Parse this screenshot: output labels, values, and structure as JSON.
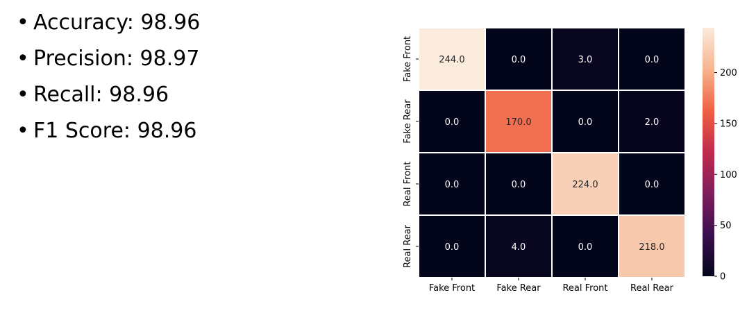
{
  "metrics": [
    {
      "label": "Accuracy",
      "value": "98.96"
    },
    {
      "label": "Precision",
      "value": "98.97"
    },
    {
      "label": "Recall",
      "value": "98.96"
    },
    {
      "label": "F1 Score",
      "value": "98.96"
    }
  ],
  "chart_data": {
    "type": "heatmap",
    "title": "",
    "xlabel": "",
    "ylabel": "",
    "x_categories": [
      "Fake Front",
      "Fake Rear",
      "Real Front",
      "Real Rear"
    ],
    "y_categories": [
      "Fake Front",
      "Fake Rear",
      "Real Front",
      "Real Rear"
    ],
    "values": [
      [
        244.0,
        0.0,
        3.0,
        0.0
      ],
      [
        0.0,
        170.0,
        0.0,
        2.0
      ],
      [
        0.0,
        0.0,
        224.0,
        0.0
      ],
      [
        0.0,
        4.0,
        0.0,
        218.0
      ]
    ],
    "cell_labels": [
      [
        "244.0",
        "0.0",
        "3.0",
        "0.0"
      ],
      [
        "0.0",
        "170.0",
        "0.0",
        "2.0"
      ],
      [
        "0.0",
        "0.0",
        "224.0",
        "0.0"
      ],
      [
        "0.0",
        "4.0",
        "0.0",
        "218.0"
      ]
    ],
    "colorbar": {
      "range": [
        0,
        244
      ],
      "ticks": [
        0,
        50,
        100,
        150,
        200
      ],
      "tick_labels": [
        "0",
        "50",
        "100",
        "150",
        "200"
      ]
    },
    "colormap": [
      "#03051a",
      "#3b0f4f",
      "#7e1d5c",
      "#c12a4c",
      "#f06043",
      "#f6b48f",
      "#faebdd"
    ],
    "gridlines": "white",
    "legend": "right colorbar"
  }
}
